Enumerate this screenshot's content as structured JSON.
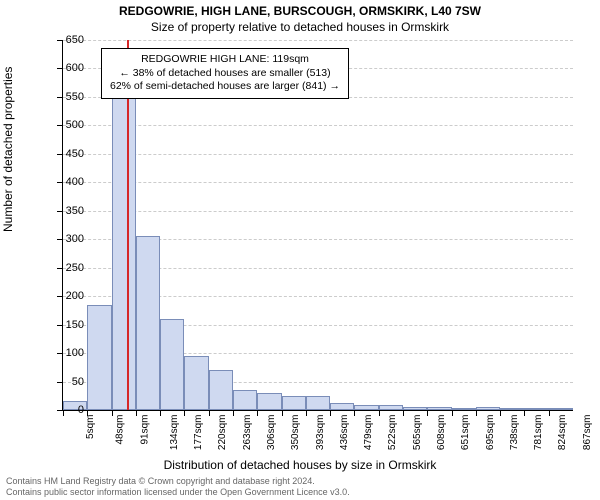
{
  "title_main": "REDGOWRIE, HIGH LANE, BURSCOUGH, ORMSKIRK, L40 7SW",
  "title_sub": "Size of property relative to detached houses in Ormskirk",
  "chart": {
    "type": "histogram",
    "x_axis_label": "Distribution of detached houses by size in Ormskirk",
    "y_axis_label": "Number of detached properties",
    "ylim": [
      0,
      650
    ],
    "ytick_step": 50,
    "y_ticks": [
      0,
      50,
      100,
      150,
      200,
      250,
      300,
      350,
      400,
      450,
      500,
      550,
      600,
      650
    ],
    "x_ticks": [
      "5sqm",
      "48sqm",
      "91sqm",
      "134sqm",
      "177sqm",
      "220sqm",
      "263sqm",
      "306sqm",
      "350sqm",
      "393sqm",
      "436sqm",
      "479sqm",
      "522sqm",
      "565sqm",
      "608sqm",
      "651sqm",
      "695sqm",
      "738sqm",
      "781sqm",
      "824sqm",
      "867sqm"
    ],
    "bar_values": [
      15,
      185,
      565,
      305,
      160,
      95,
      70,
      35,
      30,
      25,
      25,
      12,
      8,
      8,
      5,
      5,
      3,
      5,
      2,
      2,
      2
    ],
    "bar_color": "#cfd9f0",
    "bar_border_color": "#7a8db8",
    "grid_color": "#cccccc",
    "background_color": "#ffffff",
    "marker_x_index": 2.65,
    "marker_color": "#d62728"
  },
  "annotation": {
    "line1": "REDGOWRIE HIGH LANE: 119sqm",
    "line2": "← 38% of detached houses are smaller (513)",
    "line3": "62% of semi-detached houses are larger (841) →"
  },
  "footer": {
    "line1": "Contains HM Land Registry data © Crown copyright and database right 2024.",
    "line2": "Contains public sector information licensed under the Open Government Licence v3.0."
  }
}
